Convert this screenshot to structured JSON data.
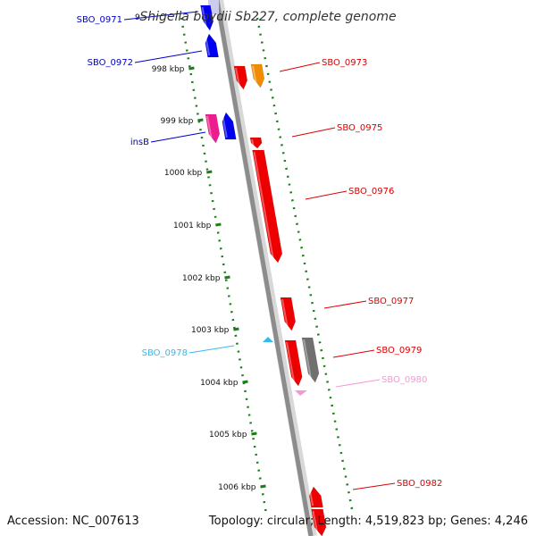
{
  "title": "Shigella boydii Sb227, complete genome",
  "footer": {
    "accession": "Accession: NC_007613",
    "topology": "Topology: circular; Length: 4,519,823 bp; Genes: 4,246"
  },
  "colors": {
    "backbone": "#8c8c8c",
    "ruler": "#1a7f1a",
    "left_label": "#0000cc",
    "right_label": "#dd0000",
    "blue_gene": "#0000ee",
    "red_gene": "#ee0000",
    "orange_gene": "#f08c00",
    "magenta_gene": "#ee1c8c",
    "gray_gene": "#707070",
    "cyan_gene": "#33bbee",
    "pink_gene": "#f39ad6"
  },
  "ruler_ticks": [
    {
      "label": "998 kbp"
    },
    {
      "label": "999 kbp"
    },
    {
      "label": "1000 kbp"
    },
    {
      "label": "1001 kbp"
    },
    {
      "label": "1002 kbp"
    },
    {
      "label": "1003 kbp"
    },
    {
      "label": "1004 kbp"
    },
    {
      "label": "1005 kbp"
    },
    {
      "label": "1006 kbp"
    }
  ],
  "gene_labels": [
    {
      "name": "SBO_0971",
      "color": "#0000cc"
    },
    {
      "name": "SBO_0972",
      "color": "#0000cc"
    },
    {
      "name": "insB",
      "color": "#0000cc"
    },
    {
      "name": "SBO_0978",
      "color": "#33bbee"
    },
    {
      "name": "SBO_0973",
      "color": "#dd0000"
    },
    {
      "name": "SBO_0975",
      "color": "#dd0000"
    },
    {
      "name": "SBO_0976",
      "color": "#dd0000"
    },
    {
      "name": "SBO_0977",
      "color": "#dd0000"
    },
    {
      "name": "SBO_0979",
      "color": "#dd0000"
    },
    {
      "name": "SBO_0980",
      "color": "#f39ad6"
    },
    {
      "name": "SBO_0982",
      "color": "#dd0000"
    }
  ]
}
